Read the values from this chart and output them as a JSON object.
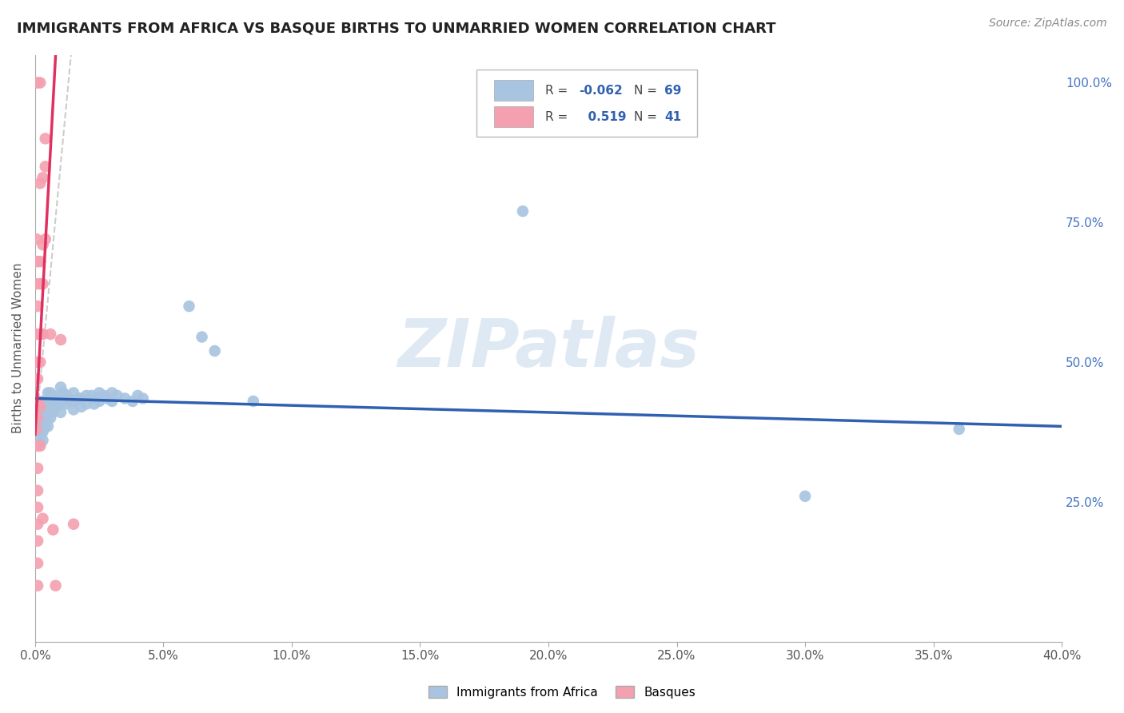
{
  "title": "IMMIGRANTS FROM AFRICA VS BASQUE BIRTHS TO UNMARRIED WOMEN CORRELATION CHART",
  "source": "Source: ZipAtlas.com",
  "ylabel": "Births to Unmarried Women",
  "legend_blue_label": "Immigrants from Africa",
  "legend_pink_label": "Basques",
  "r_blue": "-0.062",
  "n_blue": "69",
  "r_pink": "0.519",
  "n_pink": "41",
  "blue_color": "#a8c4e0",
  "pink_color": "#f4a0b0",
  "blue_line_color": "#3060b0",
  "pink_line_color": "#e03060",
  "watermark": "ZIPatlas",
  "blue_scatter": [
    [
      0.001,
      0.415
    ],
    [
      0.001,
      0.4
    ],
    [
      0.001,
      0.385
    ],
    [
      0.002,
      0.42
    ],
    [
      0.002,
      0.4
    ],
    [
      0.002,
      0.385
    ],
    [
      0.002,
      0.37
    ],
    [
      0.002,
      0.355
    ],
    [
      0.003,
      0.43
    ],
    [
      0.003,
      0.41
    ],
    [
      0.003,
      0.39
    ],
    [
      0.003,
      0.375
    ],
    [
      0.003,
      0.36
    ],
    [
      0.004,
      0.43
    ],
    [
      0.004,
      0.415
    ],
    [
      0.004,
      0.4
    ],
    [
      0.004,
      0.385
    ],
    [
      0.005,
      0.445
    ],
    [
      0.005,
      0.43
    ],
    [
      0.005,
      0.415
    ],
    [
      0.005,
      0.4
    ],
    [
      0.005,
      0.385
    ],
    [
      0.006,
      0.445
    ],
    [
      0.006,
      0.43
    ],
    [
      0.006,
      0.415
    ],
    [
      0.006,
      0.4
    ],
    [
      0.007,
      0.44
    ],
    [
      0.007,
      0.425
    ],
    [
      0.007,
      0.41
    ],
    [
      0.008,
      0.435
    ],
    [
      0.008,
      0.42
    ],
    [
      0.009,
      0.435
    ],
    [
      0.01,
      0.455
    ],
    [
      0.01,
      0.44
    ],
    [
      0.01,
      0.425
    ],
    [
      0.01,
      0.41
    ],
    [
      0.011,
      0.445
    ],
    [
      0.012,
      0.44
    ],
    [
      0.012,
      0.425
    ],
    [
      0.013,
      0.435
    ],
    [
      0.014,
      0.43
    ],
    [
      0.015,
      0.445
    ],
    [
      0.015,
      0.43
    ],
    [
      0.015,
      0.415
    ],
    [
      0.016,
      0.43
    ],
    [
      0.017,
      0.435
    ],
    [
      0.018,
      0.435
    ],
    [
      0.018,
      0.42
    ],
    [
      0.02,
      0.44
    ],
    [
      0.02,
      0.425
    ],
    [
      0.022,
      0.44
    ],
    [
      0.023,
      0.425
    ],
    [
      0.024,
      0.435
    ],
    [
      0.025,
      0.445
    ],
    [
      0.025,
      0.43
    ],
    [
      0.027,
      0.44
    ],
    [
      0.028,
      0.435
    ],
    [
      0.03,
      0.445
    ],
    [
      0.03,
      0.43
    ],
    [
      0.032,
      0.44
    ],
    [
      0.035,
      0.435
    ],
    [
      0.038,
      0.43
    ],
    [
      0.04,
      0.44
    ],
    [
      0.042,
      0.435
    ],
    [
      0.06,
      0.6
    ],
    [
      0.065,
      0.545
    ],
    [
      0.07,
      0.52
    ],
    [
      0.085,
      0.43
    ],
    [
      0.19,
      0.77
    ],
    [
      0.3,
      0.26
    ],
    [
      0.36,
      0.38
    ]
  ],
  "pink_scatter": [
    [
      0.0,
      1.0
    ],
    [
      0.001,
      1.0
    ],
    [
      0.002,
      1.0
    ],
    [
      0.0005,
      0.72
    ],
    [
      0.001,
      0.68
    ],
    [
      0.0005,
      0.64
    ],
    [
      0.001,
      0.6
    ],
    [
      0.0005,
      0.55
    ],
    [
      0.001,
      0.5
    ],
    [
      0.001,
      0.47
    ],
    [
      0.001,
      0.43
    ],
    [
      0.001,
      0.4
    ],
    [
      0.0005,
      0.38
    ],
    [
      0.001,
      0.35
    ],
    [
      0.001,
      0.31
    ],
    [
      0.001,
      0.27
    ],
    [
      0.001,
      0.24
    ],
    [
      0.001,
      0.21
    ],
    [
      0.001,
      0.18
    ],
    [
      0.001,
      0.14
    ],
    [
      0.001,
      0.1
    ],
    [
      0.002,
      0.82
    ],
    [
      0.002,
      0.68
    ],
    [
      0.002,
      0.64
    ],
    [
      0.002,
      0.55
    ],
    [
      0.002,
      0.5
    ],
    [
      0.002,
      0.42
    ],
    [
      0.002,
      0.35
    ],
    [
      0.003,
      0.71
    ],
    [
      0.003,
      0.64
    ],
    [
      0.003,
      0.55
    ],
    [
      0.003,
      0.22
    ],
    [
      0.004,
      0.9
    ],
    [
      0.004,
      0.85
    ],
    [
      0.006,
      0.55
    ],
    [
      0.007,
      0.2
    ],
    [
      0.008,
      0.1
    ],
    [
      0.01,
      0.54
    ],
    [
      0.015,
      0.21
    ],
    [
      0.004,
      0.72
    ],
    [
      0.003,
      0.83
    ]
  ],
  "xlim": [
    0.0,
    0.4
  ],
  "ylim": [
    0.0,
    1.05
  ],
  "yticks_right": [
    1.0,
    0.75,
    0.5,
    0.25
  ],
  "ytick_labels_right": [
    "100.0%",
    "75.0%",
    "50.0%",
    "25.0%"
  ],
  "xtick_values": [
    0.0,
    0.05,
    0.1,
    0.15,
    0.2,
    0.25,
    0.3,
    0.35,
    0.4
  ],
  "xtick_labels": [
    "0.0%",
    "5.0%",
    "10.0%",
    "15.0%",
    "20.0%",
    "25.0%",
    "30.0%",
    "35.0%",
    "40.0%"
  ]
}
